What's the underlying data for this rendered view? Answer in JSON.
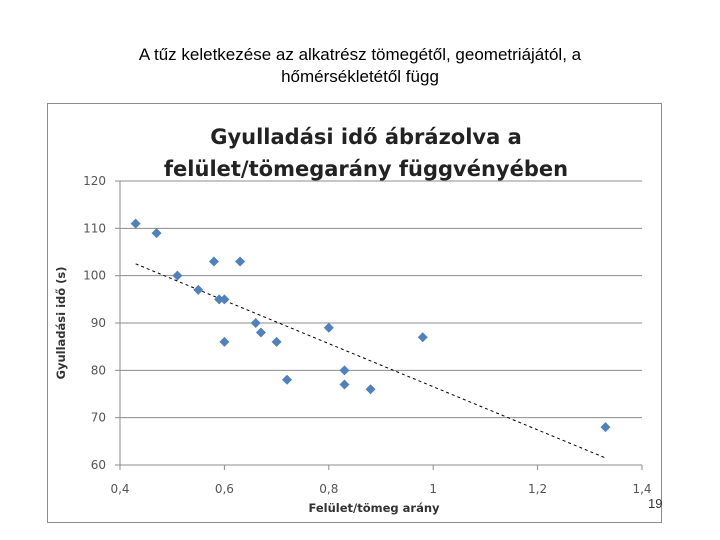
{
  "slide": {
    "title_line1": "A tűz keletkezése  az alkatrész tömegétől, geometriájától, a",
    "title_line2": "hőmérsékletétől függ",
    "page_number": "19"
  },
  "chart_data": {
    "type": "scatter",
    "title_line1": "Gyulladási idő ábrázolva a",
    "title_line2": "felület/tömegarány  függvényében",
    "xlabel": "Felület/tömeg arány",
    "ylabel": "Gyulladási idő (s)",
    "xlim": [
      0.4,
      1.4
    ],
    "ylim": [
      60,
      120
    ],
    "xticks": [
      0.4,
      0.6,
      0.8,
      1.0,
      1.2,
      1.4
    ],
    "xtick_labels": [
      "0,4",
      "0,6",
      "0,8",
      "1",
      "1,2",
      "1,4"
    ],
    "yticks": [
      60,
      70,
      80,
      90,
      100,
      110,
      120
    ],
    "ytick_labels": [
      "60",
      "70",
      "80",
      "90",
      "100",
      "110",
      "120"
    ],
    "grid": "horizontal",
    "legend": "none",
    "marker_color": "#4f81bd",
    "series": [
      {
        "points": [
          [
            0.43,
            111
          ],
          [
            0.47,
            109
          ],
          [
            0.51,
            100
          ],
          [
            0.55,
            97
          ],
          [
            0.58,
            103
          ],
          [
            0.59,
            95
          ],
          [
            0.6,
            95
          ],
          [
            0.6,
            86
          ],
          [
            0.63,
            103
          ],
          [
            0.66,
            90
          ],
          [
            0.67,
            88
          ],
          [
            0.7,
            86
          ],
          [
            0.72,
            78
          ],
          [
            0.8,
            89
          ],
          [
            0.83,
            80
          ],
          [
            0.83,
            77
          ],
          [
            0.88,
            76
          ],
          [
            0.98,
            87
          ],
          [
            1.33,
            68
          ]
        ]
      }
    ],
    "trendline": {
      "type": "linear",
      "x": [
        0.43,
        1.33
      ],
      "y": [
        102.5,
        61.5
      ],
      "style": "dashed",
      "color": "#000000"
    }
  }
}
